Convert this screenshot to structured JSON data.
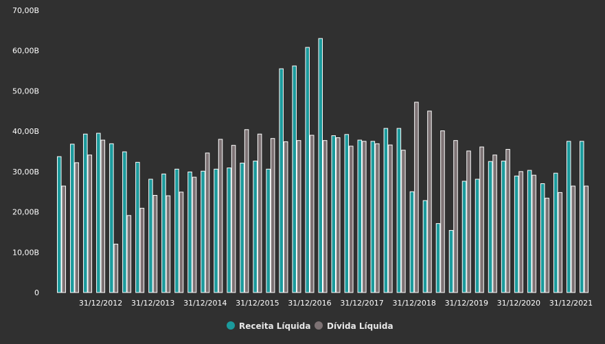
{
  "chart_data": {
    "type": "bar",
    "title": "",
    "xlabel": "",
    "ylabel": "",
    "ylim": [
      0,
      70
    ],
    "y_ticks": [
      "0",
      "10,00B",
      "20,00B",
      "30,00B",
      "40,00B",
      "50,00B",
      "60,00B",
      "70,00B"
    ],
    "x_tick_labels": [
      {
        "index": 3,
        "label": "31/12/2012"
      },
      {
        "index": 7,
        "label": "31/12/2013"
      },
      {
        "index": 11,
        "label": "31/12/2014"
      },
      {
        "index": 15,
        "label": "31/12/2015"
      },
      {
        "index": 19,
        "label": "31/12/2016"
      },
      {
        "index": 23,
        "label": "31/12/2017"
      },
      {
        "index": 27,
        "label": "31/12/2018"
      },
      {
        "index": 31,
        "label": "31/12/2019"
      },
      {
        "index": 35,
        "label": "31/12/2020"
      },
      {
        "index": 39,
        "label": "31/12/2021"
      }
    ],
    "grid": false,
    "legend_position": "bottom-center",
    "series": [
      {
        "name": "Receita Líquida",
        "color": "#1b9a9c",
        "values": [
          33.7,
          36.8,
          39.3,
          39.5,
          36.9,
          34.9,
          32.3,
          28.1,
          29.4,
          30.6,
          29.9,
          30.1,
          30.6,
          30.9,
          32.1,
          32.6,
          30.6,
          55.5,
          56.2,
          60.8,
          63.0,
          38.9,
          39.2,
          37.8,
          37.5,
          40.7,
          40.7,
          25.0,
          22.8,
          17.1,
          15.4,
          27.6,
          28.1,
          32.5,
          32.6,
          28.9,
          30.3,
          27.0,
          29.6,
          37.5,
          37.5
        ]
      },
      {
        "name": "Dívida Líquida",
        "color": "#7d7274",
        "values": [
          26.4,
          32.2,
          34.1,
          37.8,
          12.0,
          19.1,
          20.9,
          24.1,
          24.0,
          24.9,
          28.6,
          34.6,
          38.0,
          36.5,
          40.4,
          39.3,
          38.2,
          37.4,
          37.7,
          39.0,
          37.7,
          38.4,
          36.3,
          37.5,
          36.9,
          36.6,
          35.3,
          47.2,
          45.0,
          40.1,
          37.7,
          35.1,
          36.1,
          34.1,
          35.5,
          30.0,
          29.1,
          23.4,
          24.8,
          26.4,
          26.4
        ]
      }
    ]
  },
  "legend": {
    "items": [
      {
        "label": "Receita Líquida",
        "color": "#1b9a9c"
      },
      {
        "label": "Dívida Líquida",
        "color": "#7d7274"
      }
    ]
  }
}
